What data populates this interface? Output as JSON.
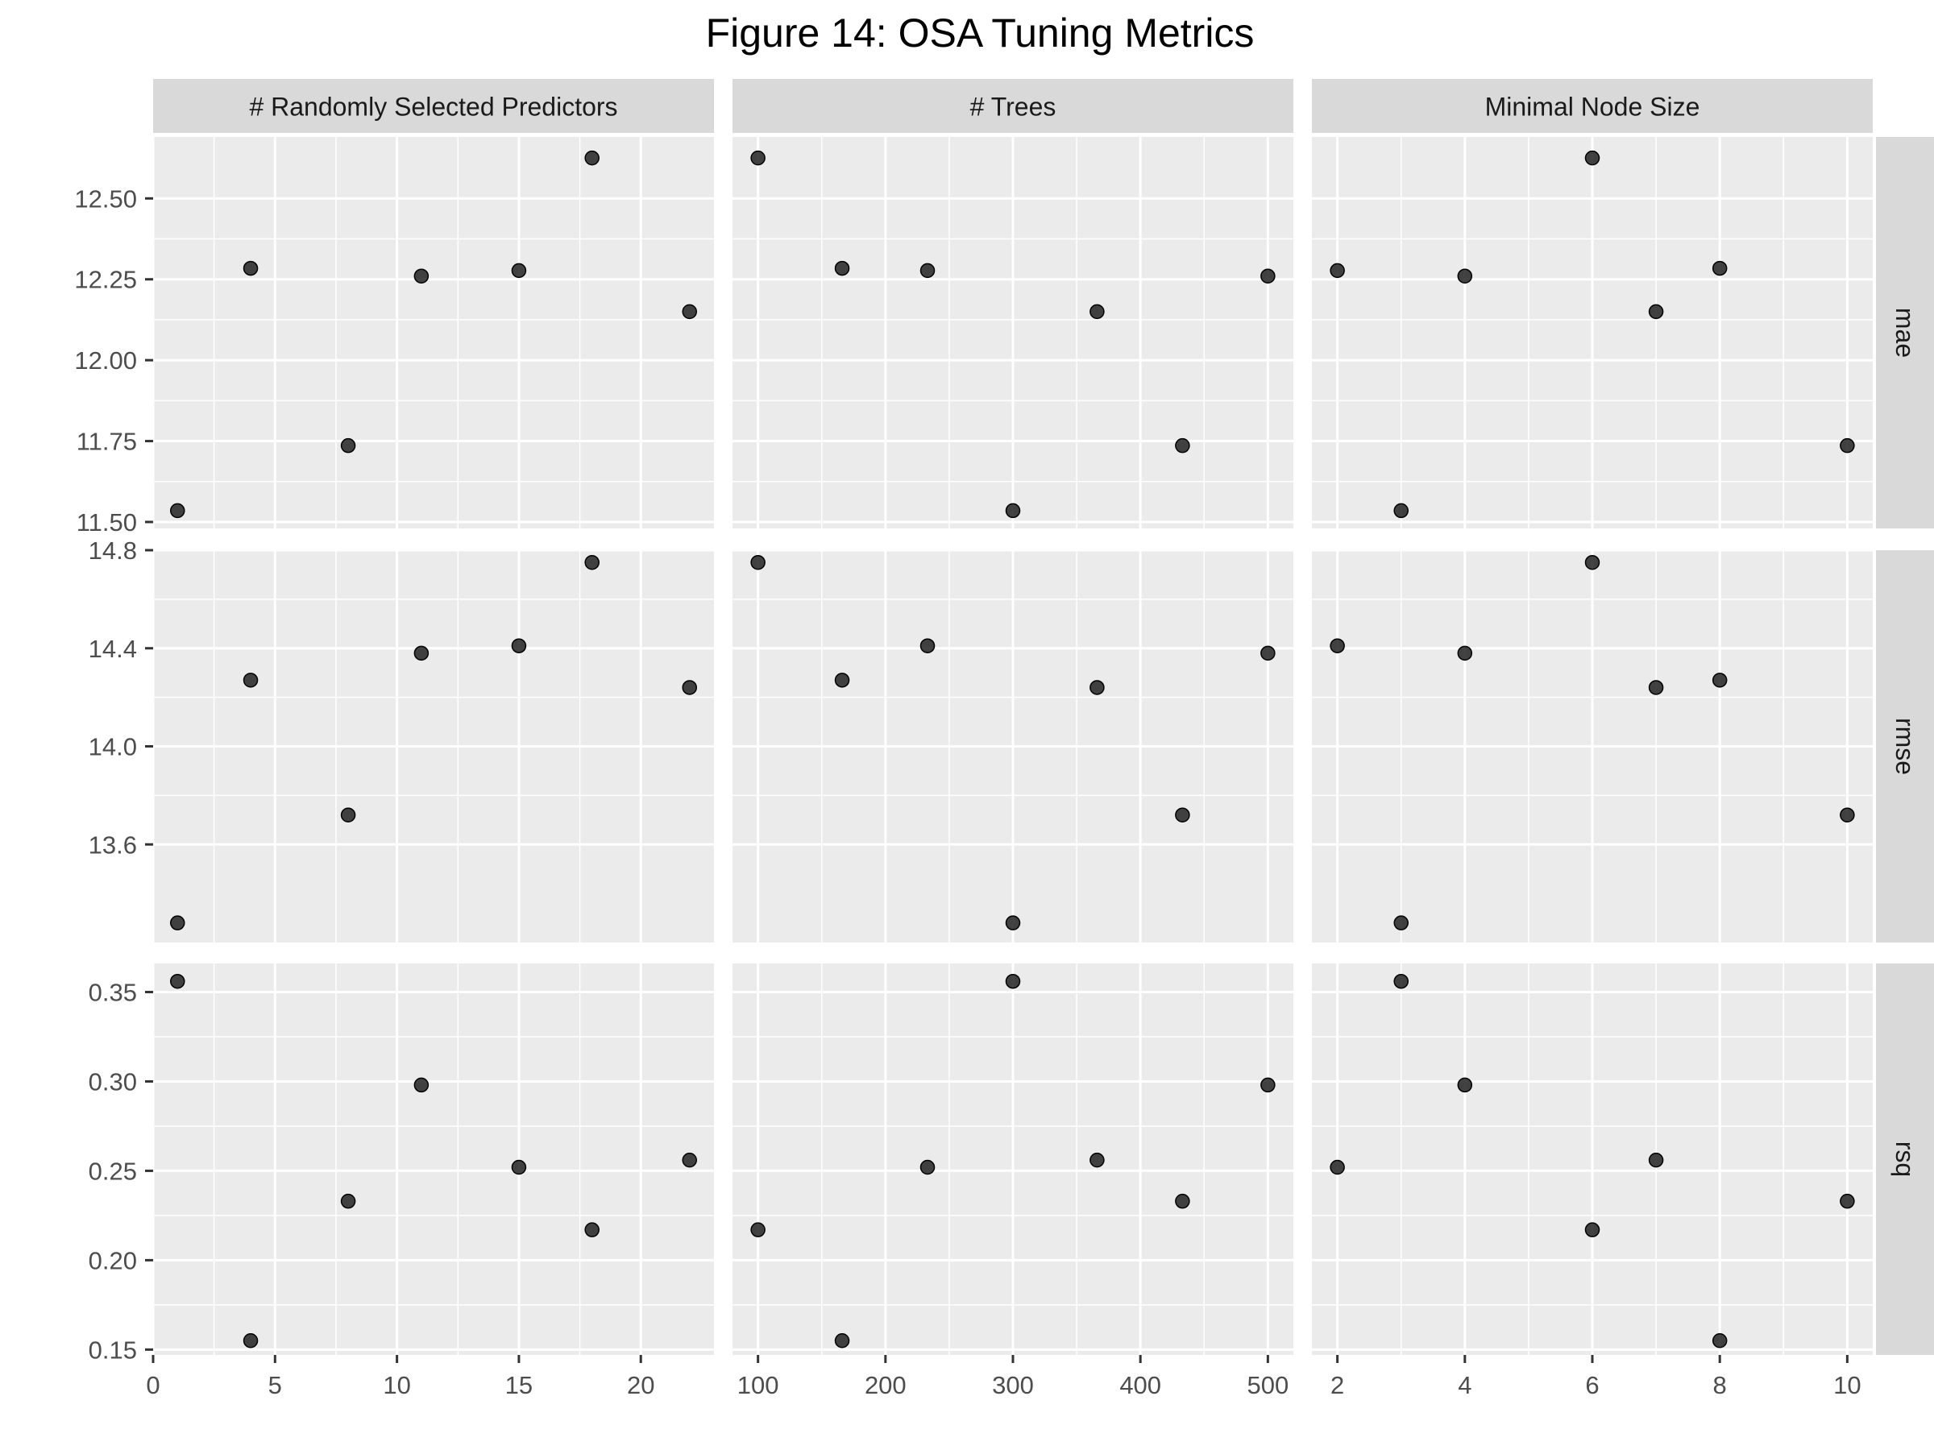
{
  "chart_data": {
    "type": "scatter",
    "title": "Figure 14: OSA Tuning Metrics",
    "xlabel": "",
    "ylabel": "",
    "grid": true,
    "point_color": "#1a1a1a",
    "panel_background": "#ebebeb",
    "strip_background": "#d9d9d9",
    "columns": [
      {
        "name": "# Randomly Selected Predictors",
        "x": [
          1,
          4,
          8,
          11,
          15,
          18,
          22
        ],
        "xlim": [
          0,
          23
        ],
        "xticks": [
          0,
          5,
          10,
          15,
          20
        ],
        "xtick_labels": [
          "0",
          "5",
          "10",
          "15",
          "20"
        ]
      },
      {
        "name": "# Trees",
        "x": [
          100,
          166,
          233,
          300,
          366,
          433,
          500
        ],
        "xlim": [
          80,
          520
        ],
        "xticks": [
          100,
          200,
          300,
          400,
          500
        ],
        "xtick_labels": [
          "100",
          "200",
          "300",
          "400",
          "500"
        ]
      },
      {
        "name": "Minimal Node Size",
        "x": [
          2,
          3,
          4,
          6,
          7,
          8,
          10
        ],
        "xlim": [
          1.6,
          10.4
        ],
        "xticks": [
          2,
          4,
          6,
          8,
          10
        ],
        "xtick_labels": [
          "2",
          "4",
          "6",
          "8",
          "10"
        ]
      }
    ],
    "rows": [
      {
        "name": "mae",
        "ylim": [
          11.48,
          12.69
        ],
        "yticks": [
          11.5,
          11.75,
          12.0,
          12.25,
          12.5
        ],
        "ytick_labels": [
          "11.50",
          "11.75",
          "12.00",
          "12.25",
          "12.50"
        ]
      },
      {
        "name": "rmse",
        "ylim": [
          13.2,
          14.8
        ],
        "yticks": [
          13.6,
          14.0,
          14.4,
          14.8
        ],
        "ytick_labels": [
          "13.6",
          "14.0",
          "14.4",
          "14.8"
        ]
      },
      {
        "name": "rsq",
        "ylim": [
          0.147,
          0.366
        ],
        "yticks": [
          0.15,
          0.2,
          0.25,
          0.3,
          0.35
        ],
        "ytick_labels": [
          "0.15",
          "0.20",
          "0.25",
          "0.30",
          "0.35"
        ]
      }
    ],
    "points": [
      {
        "mtry": 1,
        "trees": 300,
        "min_n": 3,
        "mae": 11.535,
        "rmse": 13.28,
        "rsq": 0.356
      },
      {
        "mtry": 4,
        "trees": 166,
        "min_n": 8,
        "mae": 12.284,
        "rmse": 14.27,
        "rsq": 0.155
      },
      {
        "mtry": 8,
        "trees": 433,
        "min_n": 10,
        "mae": 11.736,
        "rmse": 13.72,
        "rsq": 0.233
      },
      {
        "mtry": 11,
        "trees": 500,
        "min_n": 4,
        "mae": 12.26,
        "rmse": 14.38,
        "rsq": 0.298
      },
      {
        "mtry": 15,
        "trees": 233,
        "min_n": 2,
        "mae": 12.277,
        "rmse": 14.41,
        "rsq": 0.252
      },
      {
        "mtry": 18,
        "trees": 100,
        "min_n": 6,
        "mae": 12.625,
        "rmse": 14.75,
        "rsq": 0.217
      },
      {
        "mtry": 22,
        "trees": 366,
        "min_n": 7,
        "mae": 12.15,
        "rmse": 14.24,
        "rsq": 0.256
      }
    ]
  }
}
